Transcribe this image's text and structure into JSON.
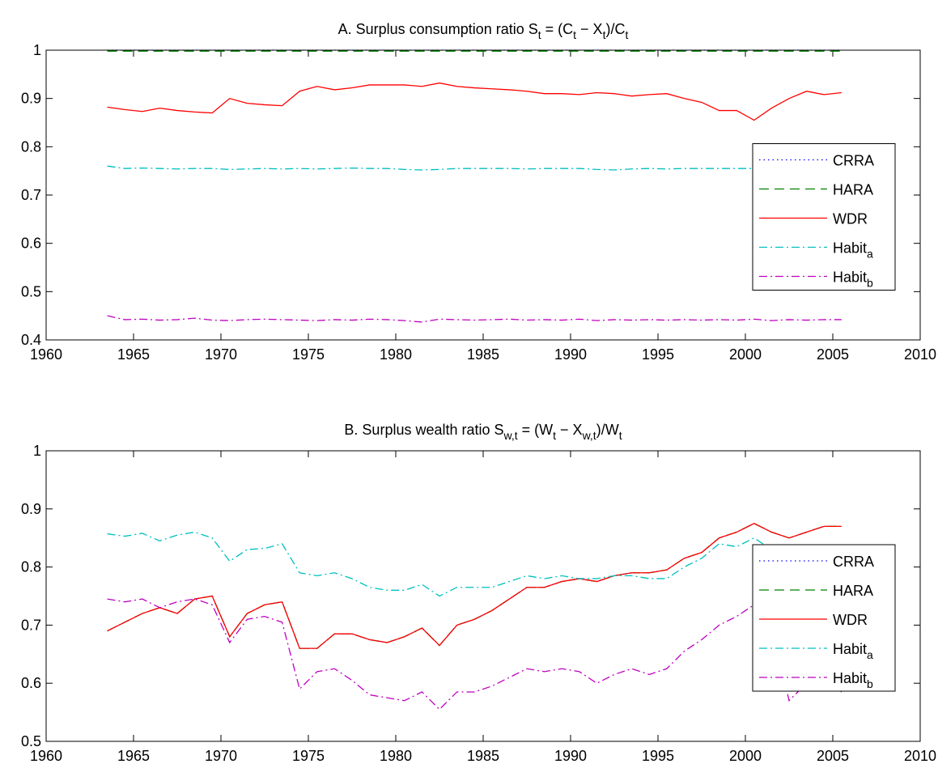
{
  "chart_data": [
    {
      "type": "line",
      "title": [
        "A. Surplus consumption ratio S",
        "t",
        " = (C",
        "t",
        " − X",
        "t",
        ")/C",
        "t"
      ],
      "x": [
        1963.5,
        1964.5,
        1965.5,
        1966.5,
        1967.5,
        1968.5,
        1969.5,
        1970.5,
        1971.5,
        1972.5,
        1973.5,
        1974.5,
        1975.5,
        1976.5,
        1977.5,
        1978.5,
        1979.5,
        1980.5,
        1981.5,
        1982.5,
        1983.5,
        1984.5,
        1985.5,
        1986.5,
        1987.5,
        1988.5,
        1989.5,
        1990.5,
        1991.5,
        1992.5,
        1993.5,
        1994.5,
        1995.5,
        1996.5,
        1997.5,
        1998.5,
        1999.5,
        2000.5,
        2001.5,
        2002.5,
        2003.5,
        2004.5,
        2005.5
      ],
      "xlim": [
        1960,
        2010
      ],
      "xticks": [
        1960,
        1965,
        1970,
        1975,
        1980,
        1985,
        1990,
        1995,
        2000,
        2005,
        2010
      ],
      "ylim": [
        0.4,
        1
      ],
      "yticks": [
        0.4,
        0.5,
        0.6,
        0.7,
        0.8,
        0.9,
        1
      ],
      "legend": "east",
      "series": [
        {
          "name": [
            "CRRA"
          ],
          "color": "#0000ff",
          "linestyle": "dotted",
          "values": [
            1,
            1,
            1,
            1,
            1,
            1,
            1,
            1,
            1,
            1,
            1,
            1,
            1,
            1,
            1,
            1,
            1,
            1,
            1,
            1,
            1,
            1,
            1,
            1,
            1,
            1,
            1,
            1,
            1,
            1,
            1,
            1,
            1,
            1,
            1,
            1,
            1,
            1,
            1,
            1,
            1,
            1,
            1
          ]
        },
        {
          "name": [
            "HARA"
          ],
          "color": "#008000",
          "linestyle": "dashed",
          "values": [
            0.998,
            0.998,
            0.998,
            0.998,
            0.998,
            0.998,
            0.998,
            0.998,
            0.998,
            0.998,
            0.998,
            0.998,
            0.998,
            0.998,
            0.998,
            0.998,
            0.998,
            0.998,
            0.998,
            0.998,
            0.998,
            0.998,
            0.998,
            0.998,
            0.998,
            0.998,
            0.998,
            0.998,
            0.998,
            0.998,
            0.998,
            0.998,
            0.998,
            0.998,
            0.998,
            0.998,
            0.998,
            0.998,
            0.998,
            0.998,
            0.998,
            0.998,
            0.998
          ]
        },
        {
          "name": [
            "WDR"
          ],
          "color": "#ff0000",
          "linestyle": "solid",
          "values": [
            0.882,
            0.877,
            0.873,
            0.88,
            0.875,
            0.872,
            0.87,
            0.9,
            0.89,
            0.887,
            0.885,
            0.915,
            0.925,
            0.918,
            0.922,
            0.928,
            0.928,
            0.928,
            0.925,
            0.932,
            0.925,
            0.922,
            0.92,
            0.918,
            0.915,
            0.91,
            0.91,
            0.908,
            0.912,
            0.91,
            0.905,
            0.908,
            0.91,
            0.9,
            0.892,
            0.875,
            0.875,
            0.855,
            0.88,
            0.9,
            0.915,
            0.908,
            0.912
          ]
        },
        {
          "name": [
            "Habit",
            "a"
          ],
          "color": "#00bfbf",
          "linestyle": "dashdot",
          "values": [
            0.76,
            0.755,
            0.756,
            0.755,
            0.754,
            0.755,
            0.755,
            0.753,
            0.754,
            0.755,
            0.754,
            0.755,
            0.754,
            0.755,
            0.756,
            0.755,
            0.755,
            0.753,
            0.752,
            0.753,
            0.755,
            0.755,
            0.755,
            0.755,
            0.754,
            0.755,
            0.755,
            0.755,
            0.753,
            0.752,
            0.754,
            0.755,
            0.754,
            0.755,
            0.755,
            0.755,
            0.755,
            0.755,
            0.755,
            0.756,
            0.755,
            0.755,
            0.756
          ]
        },
        {
          "name": [
            "Habit",
            "b"
          ],
          "color": "#bf00bf",
          "linestyle": "dashdot",
          "values": [
            0.45,
            0.442,
            0.443,
            0.441,
            0.442,
            0.445,
            0.441,
            0.44,
            0.442,
            0.443,
            0.442,
            0.441,
            0.44,
            0.442,
            0.441,
            0.443,
            0.442,
            0.44,
            0.437,
            0.443,
            0.442,
            0.441,
            0.442,
            0.443,
            0.441,
            0.442,
            0.441,
            0.443,
            0.44,
            0.442,
            0.441,
            0.442,
            0.441,
            0.442,
            0.441,
            0.442,
            0.441,
            0.443,
            0.44,
            0.442,
            0.441,
            0.442,
            0.442
          ]
        }
      ]
    },
    {
      "type": "line",
      "title": [
        "B. Surplus wealth ratio S",
        "w,t",
        " = (W",
        "t",
        " − X",
        "w,t",
        ")/W",
        "t"
      ],
      "x": [
        1963.5,
        1964.5,
        1965.5,
        1966.5,
        1967.5,
        1968.5,
        1969.5,
        1970.5,
        1971.5,
        1972.5,
        1973.5,
        1974.5,
        1975.5,
        1976.5,
        1977.5,
        1978.5,
        1979.5,
        1980.5,
        1981.5,
        1982.5,
        1983.5,
        1984.5,
        1985.5,
        1986.5,
        1987.5,
        1988.5,
        1989.5,
        1990.5,
        1991.5,
        1992.5,
        1993.5,
        1994.5,
        1995.5,
        1996.5,
        1997.5,
        1998.5,
        1999.5,
        2000.5,
        2001.5,
        2002.5,
        2003.5,
        2004.5,
        2005.5
      ],
      "xlim": [
        1960,
        2010
      ],
      "xticks": [
        1960,
        1965,
        1970,
        1975,
        1980,
        1985,
        1990,
        1995,
        2000,
        2005,
        2010
      ],
      "ylim": [
        0.5,
        1
      ],
      "yticks": [
        0.5,
        0.6,
        0.7,
        0.8,
        0.9,
        1
      ],
      "legend": "east",
      "series": [
        {
          "name": [
            "CRRA"
          ],
          "color": "#0000ff",
          "linestyle": "dotted",
          "values": [
            0.69,
            0.705,
            0.72,
            0.73,
            0.72,
            0.745,
            0.75,
            0.68,
            0.72,
            0.735,
            0.74,
            0.66,
            0.66,
            0.685,
            0.685,
            0.675,
            0.67,
            0.68,
            0.695,
            0.665,
            0.7,
            0.71,
            0.725,
            0.745,
            0.765,
            0.765,
            0.775,
            0.78,
            0.775,
            0.785,
            0.79,
            0.79,
            0.795,
            0.815,
            0.825,
            0.85,
            0.86,
            0.875,
            0.86,
            0.85,
            0.86,
            0.87,
            0.87
          ]
        },
        {
          "name": [
            "HARA"
          ],
          "color": "#008000",
          "linestyle": "dashed",
          "values": [
            0.69,
            0.705,
            0.72,
            0.73,
            0.72,
            0.745,
            0.75,
            0.68,
            0.72,
            0.735,
            0.74,
            0.66,
            0.66,
            0.685,
            0.685,
            0.675,
            0.67,
            0.68,
            0.695,
            0.665,
            0.7,
            0.71,
            0.725,
            0.745,
            0.765,
            0.765,
            0.775,
            0.78,
            0.775,
            0.785,
            0.79,
            0.79,
            0.795,
            0.815,
            0.825,
            0.85,
            0.86,
            0.875,
            0.86,
            0.85,
            0.86,
            0.87,
            0.87
          ]
        },
        {
          "name": [
            "WDR"
          ],
          "color": "#ff0000",
          "linestyle": "solid",
          "values": [
            0.69,
            0.705,
            0.72,
            0.73,
            0.72,
            0.745,
            0.75,
            0.68,
            0.72,
            0.735,
            0.74,
            0.66,
            0.66,
            0.685,
            0.685,
            0.675,
            0.67,
            0.68,
            0.695,
            0.665,
            0.7,
            0.71,
            0.725,
            0.745,
            0.765,
            0.765,
            0.775,
            0.78,
            0.775,
            0.785,
            0.79,
            0.79,
            0.795,
            0.815,
            0.825,
            0.85,
            0.86,
            0.875,
            0.86,
            0.85,
            0.86,
            0.87,
            0.87
          ]
        },
        {
          "name": [
            "Habit",
            "a"
          ],
          "color": "#00bfbf",
          "linestyle": "dashdot",
          "values": [
            0.857,
            0.853,
            0.858,
            0.845,
            0.855,
            0.86,
            0.85,
            0.81,
            0.83,
            0.832,
            0.84,
            0.79,
            0.785,
            0.79,
            0.78,
            0.765,
            0.76,
            0.76,
            0.77,
            0.75,
            0.765,
            0.765,
            0.765,
            0.775,
            0.785,
            0.78,
            0.785,
            0.78,
            0.78,
            0.785,
            0.785,
            0.78,
            0.78,
            0.8,
            0.815,
            0.84,
            0.835,
            0.85,
            0.83,
            0.8,
            0.8,
            0.8,
            0.8
          ]
        },
        {
          "name": [
            "Habit",
            "b"
          ],
          "color": "#bf00bf",
          "linestyle": "dashdot",
          "values": [
            0.745,
            0.74,
            0.745,
            0.73,
            0.74,
            0.745,
            0.735,
            0.67,
            0.71,
            0.715,
            0.705,
            0.59,
            0.62,
            0.625,
            0.605,
            0.58,
            0.575,
            0.57,
            0.585,
            0.555,
            0.585,
            0.585,
            0.595,
            0.61,
            0.625,
            0.62,
            0.625,
            0.62,
            0.6,
            0.615,
            0.625,
            0.615,
            0.625,
            0.655,
            0.675,
            0.7,
            0.715,
            0.735,
            0.7,
            0.57,
            0.6,
            0.61,
            0.585
          ]
        }
      ]
    }
  ]
}
